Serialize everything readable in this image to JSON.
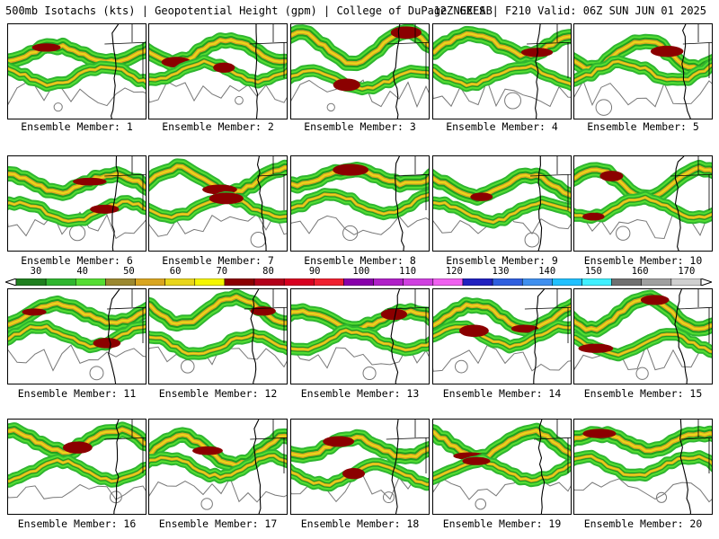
{
  "header": {
    "title_left": "500mb Isotachs (kts) | Geopotential Height (gpm) | College of DuPage NEXLAB",
    "title_right": "12Z GEFS | F210 Valid: 06Z SUN JUN 01 2025"
  },
  "colorbar": {
    "labels": [
      "30",
      "40",
      "50",
      "60",
      "70",
      "80",
      "90",
      "100",
      "110",
      "120",
      "130",
      "140",
      "150",
      "160",
      "170"
    ],
    "colors": [
      "#1f7f1f",
      "#2fb62f",
      "#55dd33",
      "#9b8830",
      "#d9a520",
      "#e9d51a",
      "#f5f500",
      "#8b0000",
      "#b3001a",
      "#d80020",
      "#f02030",
      "#8800aa",
      "#b020c8",
      "#d040e0",
      "#f060f0",
      "#2020c0",
      "#2f5fdf",
      "#3f8fef",
      "#20c0ff",
      "#40f0ff",
      "#707070",
      "#a0a0a0",
      "#d0d0d0"
    ]
  },
  "members": [
    {
      "label": "Ensemble Member: 1"
    },
    {
      "label": "Ensemble Member: 2"
    },
    {
      "label": "Ensemble Member: 3"
    },
    {
      "label": "Ensemble Member: 4"
    },
    {
      "label": "Ensemble Member: 5"
    },
    {
      "label": "Ensemble Member: 6"
    },
    {
      "label": "Ensemble Member: 7"
    },
    {
      "label": "Ensemble Member: 8"
    },
    {
      "label": "Ensemble Member: 9"
    },
    {
      "label": "Ensemble Member: 10"
    },
    {
      "label": "Ensemble Member: 11"
    },
    {
      "label": "Ensemble Member: 12"
    },
    {
      "label": "Ensemble Member: 13"
    },
    {
      "label": "Ensemble Member: 14"
    },
    {
      "label": "Ensemble Member: 15"
    },
    {
      "label": "Ensemble Member: 16"
    },
    {
      "label": "Ensemble Member: 17"
    },
    {
      "label": "Ensemble Member: 18"
    },
    {
      "label": "Ensemble Member: 19"
    },
    {
      "label": "Ensemble Member: 20"
    }
  ]
}
